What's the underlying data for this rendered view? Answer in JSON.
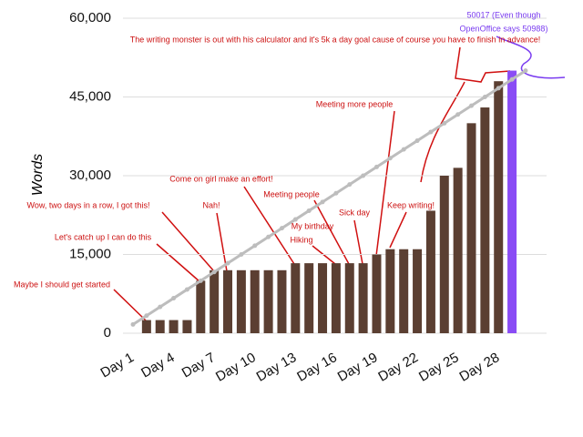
{
  "chart_data": {
    "type": "bar",
    "y_label": "Words",
    "categories": [
      "Day 1",
      null,
      null,
      "Day 4",
      null,
      null,
      "Day 7",
      null,
      null,
      "Day 10",
      null,
      null,
      "Day 13",
      null,
      null,
      "Day 16",
      null,
      null,
      "Day 19",
      null,
      null,
      "Day 22",
      null,
      null,
      "Day 25",
      null,
      null,
      "Day 28",
      null,
      null
    ],
    "series": [
      {
        "type": "bar",
        "values": [
          null,
          2500,
          2500,
          2500,
          2500,
          10000,
          12000,
          12000,
          12000,
          12000,
          12000,
          12000,
          13333,
          13333,
          13333,
          13333,
          13333,
          13333,
          15000,
          16000,
          16000,
          16000,
          23333,
          30000,
          31500,
          40000,
          43000,
          48000,
          50017,
          null
        ],
        "colors": [
          "#5b3f32",
          "#5b3f32",
          "#5b3f32",
          "#5b3f32",
          "#5b3f32",
          "#5b3f32",
          "#5b3f32",
          "#5b3f32",
          "#5b3f32",
          "#5b3f32",
          "#5b3f32",
          "#5b3f32",
          "#5b3f32",
          "#5b3f32",
          "#5b3f32",
          "#5b3f32",
          "#5b3f32",
          "#5b3f32",
          "#5b3f32",
          "#5b3f32",
          "#5b3f32",
          "#5b3f32",
          "#5b3f32",
          "#5b3f32",
          "#5b3f32",
          "#5b3f32",
          "#5b3f32",
          "#5b3f32",
          "#8a4cf5",
          "#5b3f32"
        ]
      },
      {
        "type": "line",
        "color": "#bdbdbd",
        "values": [
          1667,
          3333,
          5000,
          6667,
          8333,
          10000,
          11667,
          13333,
          15000,
          16667,
          18333,
          20000,
          21667,
          23333,
          25000,
          26667,
          28333,
          30000,
          31667,
          33333,
          35000,
          36667,
          38333,
          40000,
          41667,
          43333,
          45000,
          46667,
          48333,
          50000
        ]
      }
    ],
    "ylim": [
      0,
      60000
    ],
    "yticks": [
      0,
      {
        "value": 15000,
        "label": "15,000"
      },
      {
        "value": 30000,
        "label": "30,000"
      },
      {
        "value": 45000,
        "label": "45,000"
      },
      {
        "value": 60000,
        "label": "60,000"
      }
    ],
    "grid": true,
    "annotations": [
      {
        "text": "The writing monster is out with his calculator and it's 5k a day goal cause of course you have to finish in advance!",
        "color": "#cc1111"
      },
      {
        "text": "Meeting more people",
        "color": "#cc1111"
      },
      {
        "text": "Come on girl make an effort!",
        "color": "#cc1111"
      },
      {
        "text": "Meeting people",
        "color": "#cc1111"
      },
      {
        "text": "Wow, two days in a row, I got this!",
        "color": "#cc1111"
      },
      {
        "text": "Nah!",
        "color": "#cc1111"
      },
      {
        "text": "Sick day",
        "color": "#cc1111"
      },
      {
        "text": "Keep writing!",
        "color": "#cc1111"
      },
      {
        "text": "My birthday",
        "color": "#cc1111"
      },
      {
        "text": "Hiking",
        "color": "#cc1111"
      },
      {
        "text": "Let's catch up I can do this",
        "color": "#cc1111"
      },
      {
        "text": "Maybe I should get started",
        "color": "#cc1111"
      },
      {
        "lines": [
          "50017 (Even though",
          "OpenOffice says 50988)"
        ],
        "color": "#7a3cf0"
      }
    ]
  }
}
